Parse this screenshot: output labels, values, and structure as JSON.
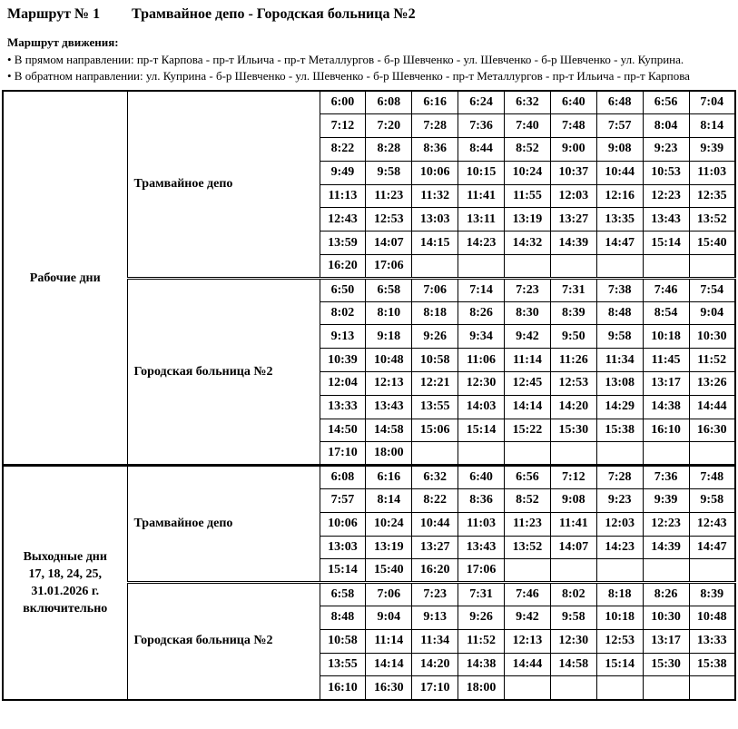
{
  "document": {
    "kind": "tram-timetable",
    "colors": {
      "text": "#000000",
      "background": "#ffffff",
      "table_border": "#000000"
    }
  },
  "header": {
    "route_label": "Маршрут № 1",
    "route_title": "Трамвайное депо - Городская больница №2",
    "route_info_heading": "Маршрут движения:",
    "bullets": [
      "• В прямом направлении: пр-т Карпова - пр-т Ильича - пр-т Металлургов - б-р Шевченко - ул. Шевченко - б-р Шевченко - ул. Куприна.",
      "• В обратном направлении: ул. Куприна - б-р Шевченко - ул. Шевченко - б-р Шевченко - пр-т Металлургов - пр-т Ильича - пр-т Карпова"
    ]
  },
  "schedule": {
    "columns_per_row": 9,
    "sections": [
      {
        "day_label_lines": [
          "Рабочие дни"
        ],
        "blocks": [
          {
            "stop": "Трамвайное депо",
            "rows": [
              [
                "6:00",
                "6:08",
                "6:16",
                "6:24",
                "6:32",
                "6:40",
                "6:48",
                "6:56",
                "7:04"
              ],
              [
                "7:12",
                "7:20",
                "7:28",
                "7:36",
                "7:40",
                "7:48",
                "7:57",
                "8:04",
                "8:14"
              ],
              [
                "8:22",
                "8:28",
                "8:36",
                "8:44",
                "8:52",
                "9:00",
                "9:08",
                "9:23",
                "9:39"
              ],
              [
                "9:49",
                "9:58",
                "10:06",
                "10:15",
                "10:24",
                "10:37",
                "10:44",
                "10:53",
                "11:03"
              ],
              [
                "11:13",
                "11:23",
                "11:32",
                "11:41",
                "11:55",
                "12:03",
                "12:16",
                "12:23",
                "12:35"
              ],
              [
                "12:43",
                "12:53",
                "13:03",
                "13:11",
                "13:19",
                "13:27",
                "13:35",
                "13:43",
                "13:52"
              ],
              [
                "13:59",
                "14:07",
                "14:15",
                "14:23",
                "14:32",
                "14:39",
                "14:47",
                "15:14",
                "15:40"
              ],
              [
                "16:20",
                "17:06",
                "",
                "",
                "",
                "",
                "",
                "",
                ""
              ]
            ]
          },
          {
            "stop": "Городская больница №2",
            "rows": [
              [
                "6:50",
                "6:58",
                "7:06",
                "7:14",
                "7:23",
                "7:31",
                "7:38",
                "7:46",
                "7:54"
              ],
              [
                "8:02",
                "8:10",
                "8:18",
                "8:26",
                "8:30",
                "8:39",
                "8:48",
                "8:54",
                "9:04"
              ],
              [
                "9:13",
                "9:18",
                "9:26",
                "9:34",
                "9:42",
                "9:50",
                "9:58",
                "10:18",
                "10:30"
              ],
              [
                "10:39",
                "10:48",
                "10:58",
                "11:06",
                "11:14",
                "11:26",
                "11:34",
                "11:45",
                "11:52"
              ],
              [
                "12:04",
                "12:13",
                "12:21",
                "12:30",
                "12:45",
                "12:53",
                "13:08",
                "13:17",
                "13:26"
              ],
              [
                "13:33",
                "13:43",
                "13:55",
                "14:03",
                "14:14",
                "14:20",
                "14:29",
                "14:38",
                "14:44"
              ],
              [
                "14:50",
                "14:58",
                "15:06",
                "15:14",
                "15:22",
                "15:30",
                "15:38",
                "16:10",
                "16:30"
              ],
              [
                "17:10",
                "18:00",
                "",
                "",
                "",
                "",
                "",
                "",
                ""
              ]
            ]
          }
        ]
      },
      {
        "day_label_lines": [
          "Выходные дни",
          "17, 18, 24, 25,",
          "31.01.2026 г.",
          "включительно"
        ],
        "blocks": [
          {
            "stop": "Трамвайное депо",
            "rows": [
              [
                "6:08",
                "6:16",
                "6:32",
                "6:40",
                "6:56",
                "7:12",
                "7:28",
                "7:36",
                "7:48"
              ],
              [
                "7:57",
                "8:14",
                "8:22",
                "8:36",
                "8:52",
                "9:08",
                "9:23",
                "9:39",
                "9:58"
              ],
              [
                "10:06",
                "10:24",
                "10:44",
                "11:03",
                "11:23",
                "11:41",
                "12:03",
                "12:23",
                "12:43"
              ],
              [
                "13:03",
                "13:19",
                "13:27",
                "13:43",
                "13:52",
                "14:07",
                "14:23",
                "14:39",
                "14:47"
              ],
              [
                "15:14",
                "15:40",
                "16:20",
                "17:06",
                "",
                "",
                "",
                "",
                ""
              ]
            ]
          },
          {
            "stop": "Городская больница №2",
            "rows": [
              [
                "6:58",
                "7:06",
                "7:23",
                "7:31",
                "7:46",
                "8:02",
                "8:18",
                "8:26",
                "8:39"
              ],
              [
                "8:48",
                "9:04",
                "9:13",
                "9:26",
                "9:42",
                "9:58",
                "10:18",
                "10:30",
                "10:48"
              ],
              [
                "10:58",
                "11:14",
                "11:34",
                "11:52",
                "12:13",
                "12:30",
                "12:53",
                "13:17",
                "13:33"
              ],
              [
                "13:55",
                "14:14",
                "14:20",
                "14:38",
                "14:44",
                "14:58",
                "15:14",
                "15:30",
                "15:38"
              ],
              [
                "16:10",
                "16:30",
                "17:10",
                "18:00",
                "",
                "",
                "",
                "",
                ""
              ]
            ]
          }
        ]
      }
    ]
  }
}
